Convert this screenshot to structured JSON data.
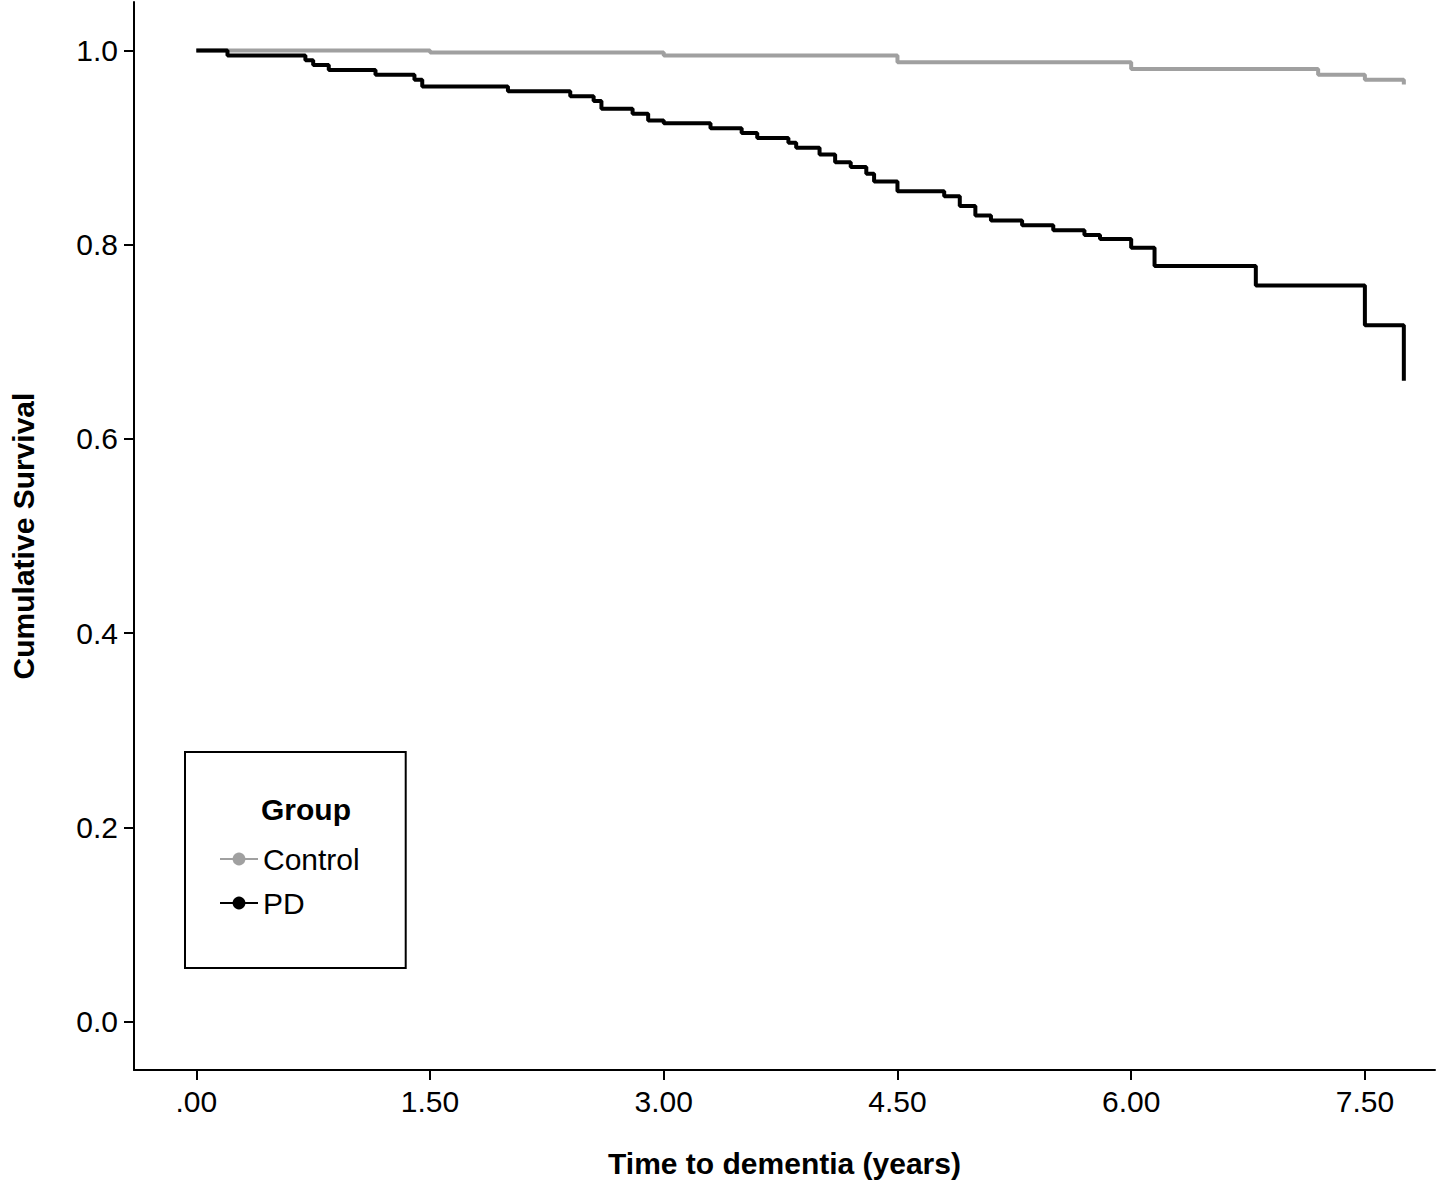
{
  "chart_data": {
    "type": "line",
    "x_label": "Time to dementia (years)",
    "y_label": "Cumulative Survival",
    "legend_title": "Group",
    "legend": "lower left",
    "grid": false,
    "line_style": "step",
    "xlim": [
      -0.4,
      7.95
    ],
    "xticks": [
      {
        "value": 0,
        "label": ".00"
      },
      {
        "value": 1.5,
        "label": "1.50"
      },
      {
        "value": 3,
        "label": "3.00"
      },
      {
        "value": 4.5,
        "label": "4.50"
      },
      {
        "value": 6,
        "label": "6.00"
      },
      {
        "value": 7.5,
        "label": "7.50"
      }
    ],
    "ylim": [
      -0.05,
      1.05
    ],
    "yticks": [
      {
        "value": 0,
        "label": "0.0"
      },
      0.2,
      0.4,
      0.6,
      0.8,
      {
        "value": 1,
        "label": "1.0"
      }
    ],
    "series": [
      {
        "name": "Control",
        "color": "#a0a0a0",
        "x": [
          0,
          1.5,
          3,
          4.5,
          6,
          7.2,
          7.5,
          7.75
        ],
        "values": [
          1.0,
          0.998,
          0.995,
          0.988,
          0.981,
          0.975,
          0.97,
          0.965
        ]
      },
      {
        "name": "PD",
        "color": "#000000",
        "x": [
          0,
          0.2,
          0.7,
          0.75,
          0.85,
          1.15,
          1.4,
          1.45,
          2.0,
          2.4,
          2.55,
          2.6,
          2.8,
          2.9,
          3.0,
          3.3,
          3.5,
          3.6,
          3.8,
          3.85,
          4.0,
          4.1,
          4.2,
          4.3,
          4.35,
          4.5,
          4.8,
          4.9,
          5.0,
          5.1,
          5.3,
          5.5,
          5.7,
          5.8,
          6.0,
          6.15,
          6.8,
          7.5,
          7.75
        ],
        "values": [
          1.0,
          0.995,
          0.99,
          0.985,
          0.98,
          0.975,
          0.97,
          0.963,
          0.958,
          0.953,
          0.948,
          0.94,
          0.935,
          0.928,
          0.925,
          0.92,
          0.915,
          0.91,
          0.905,
          0.9,
          0.893,
          0.885,
          0.88,
          0.873,
          0.865,
          0.855,
          0.85,
          0.84,
          0.83,
          0.825,
          0.82,
          0.815,
          0.81,
          0.806,
          0.797,
          0.778,
          0.758,
          0.717,
          0.66
        ]
      }
    ]
  }
}
